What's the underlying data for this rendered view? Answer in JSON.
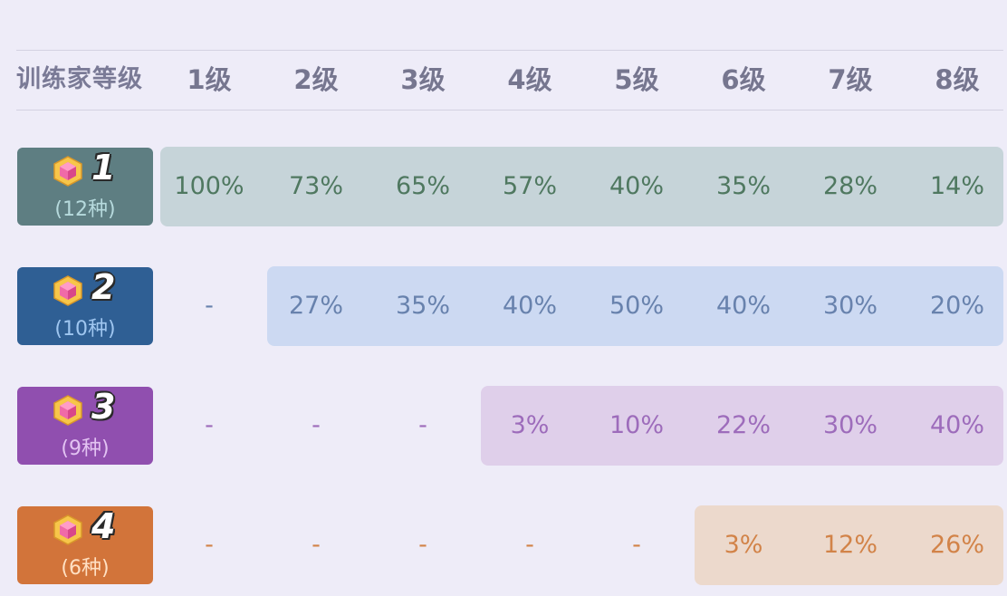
{
  "header": {
    "label": "训练家等级",
    "levels": [
      "1级",
      "2级",
      "3级",
      "4级",
      "5级",
      "6级",
      "7级",
      "8级"
    ]
  },
  "tiers": [
    {
      "tier": "1",
      "count": "(12种)",
      "color": "#5e7e82",
      "band_color": "#c6d4d9",
      "text_color": "#4f7860",
      "count_color": "#b6dadd",
      "band_start": 0,
      "values": [
        "100%",
        "73%",
        "65%",
        "57%",
        "40%",
        "35%",
        "28%",
        "14%"
      ]
    },
    {
      "tier": "2",
      "count": "(10种)",
      "color": "#2f5f94",
      "band_color": "#ccd9f2",
      "text_color": "#6882ad",
      "count_color": "#9fc6f0",
      "band_start": 1,
      "values": [
        "-",
        "27%",
        "35%",
        "40%",
        "50%",
        "40%",
        "30%",
        "20%"
      ]
    },
    {
      "tier": "3",
      "count": "(9种)",
      "color": "#904faf",
      "band_color": "#dfcfea",
      "text_color": "#9d6cbb",
      "count_color": "#e3c3f2",
      "band_start": 3,
      "values": [
        "-",
        "-",
        "-",
        "3%",
        "10%",
        "22%",
        "30%",
        "40%"
      ]
    },
    {
      "tier": "4",
      "count": "(6种)",
      "color": "#d2743a",
      "band_color": "#ecd9cc",
      "text_color": "#d28348",
      "count_color": "#ffe0c4",
      "band_start": 5,
      "values": [
        "-",
        "-",
        "-",
        "-",
        "-",
        "3%",
        "12%",
        "26%"
      ]
    }
  ]
}
